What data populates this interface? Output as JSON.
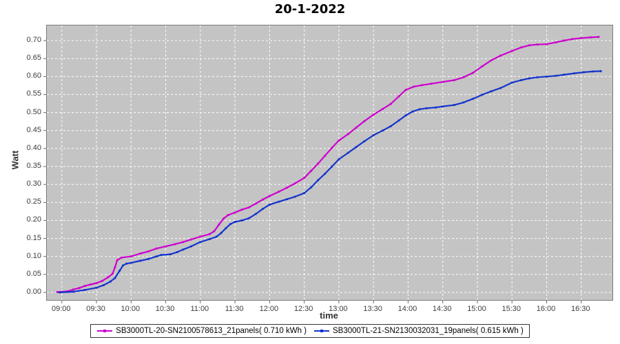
{
  "title": "20-1-2022",
  "axis": {
    "xlabel": "time",
    "ylabel": "Watt"
  },
  "colors": {
    "series1": "#cc00cc",
    "series2": "#1433cc",
    "plot_bg": "#c4c4c4",
    "grid": "#ffffff",
    "tick": "#6b6b6b"
  },
  "legend": {
    "entries": [
      {
        "label": "SB3000TL-20-SN2100578613_21panels( 0.710 kWh )",
        "color": "#cc00cc"
      },
      {
        "label": "SB3000TL-21-SN2130032031_19panels( 0.615 kWh )",
        "color": "#1433cc"
      }
    ]
  },
  "chart_data": {
    "type": "line",
    "title": "20-1-2022",
    "xlabel": "time",
    "ylabel": "Watt",
    "grid": true,
    "legend_position": "bottom",
    "x_ticks": [
      "09:00",
      "09:30",
      "10:00",
      "10:30",
      "11:00",
      "11:30",
      "12:00",
      "12:30",
      "13:00",
      "13:30",
      "14:00",
      "14:30",
      "15:00",
      "15:30",
      "16:00",
      "16:30"
    ],
    "y_ticks": [
      "0.00",
      "0.05",
      "0.10",
      "0.15",
      "0.20",
      "0.25",
      "0.30",
      "0.35",
      "0.40",
      "0.45",
      "0.50",
      "0.55",
      "0.60",
      "0.65",
      "0.70"
    ],
    "x_domain": [
      "08:47",
      "16:57"
    ],
    "ylim": [
      -0.021,
      0.742
    ],
    "series": [
      {
        "name": "SB3000TL-20-SN2100578613_21panels( 0.710 kWh )",
        "color": "#cc00cc",
        "final_kwh": 0.71,
        "points": [
          [
            "08:56",
            0.001
          ],
          [
            "09:05",
            0.003
          ],
          [
            "09:10",
            0.008
          ],
          [
            "09:15",
            0.012
          ],
          [
            "09:20",
            0.018
          ],
          [
            "09:25",
            0.022
          ],
          [
            "09:30",
            0.026
          ],
          [
            "09:35",
            0.032
          ],
          [
            "09:40",
            0.042
          ],
          [
            "09:44",
            0.052
          ],
          [
            "09:46",
            0.07
          ],
          [
            "09:48",
            0.09
          ],
          [
            "09:52",
            0.097
          ],
          [
            "10:00",
            0.1
          ],
          [
            "10:08",
            0.108
          ],
          [
            "10:15",
            0.114
          ],
          [
            "10:22",
            0.122
          ],
          [
            "10:30",
            0.128
          ],
          [
            "10:38",
            0.134
          ],
          [
            "10:45",
            0.14
          ],
          [
            "10:52",
            0.147
          ],
          [
            "11:00",
            0.155
          ],
          [
            "11:08",
            0.162
          ],
          [
            "11:12",
            0.17
          ],
          [
            "11:16",
            0.188
          ],
          [
            "11:20",
            0.205
          ],
          [
            "11:24",
            0.215
          ],
          [
            "11:30",
            0.222
          ],
          [
            "11:36",
            0.23
          ],
          [
            "11:42",
            0.236
          ],
          [
            "11:48",
            0.247
          ],
          [
            "11:54",
            0.258
          ],
          [
            "12:00",
            0.268
          ],
          [
            "12:08",
            0.28
          ],
          [
            "12:15",
            0.291
          ],
          [
            "12:22",
            0.303
          ],
          [
            "12:30",
            0.318
          ],
          [
            "12:36",
            0.338
          ],
          [
            "12:42",
            0.358
          ],
          [
            "12:48",
            0.38
          ],
          [
            "12:54",
            0.402
          ],
          [
            "13:00",
            0.422
          ],
          [
            "13:08",
            0.44
          ],
          [
            "13:15",
            0.458
          ],
          [
            "13:22",
            0.476
          ],
          [
            "13:30",
            0.494
          ],
          [
            "13:38",
            0.51
          ],
          [
            "13:45",
            0.524
          ],
          [
            "13:52",
            0.545
          ],
          [
            "13:58",
            0.563
          ],
          [
            "14:05",
            0.572
          ],
          [
            "14:12",
            0.576
          ],
          [
            "14:20",
            0.58
          ],
          [
            "14:30",
            0.585
          ],
          [
            "14:40",
            0.59
          ],
          [
            "14:48",
            0.598
          ],
          [
            "14:56",
            0.61
          ],
          [
            "15:04",
            0.628
          ],
          [
            "15:12",
            0.645
          ],
          [
            "15:20",
            0.658
          ],
          [
            "15:30",
            0.671
          ],
          [
            "15:38",
            0.681
          ],
          [
            "15:45",
            0.687
          ],
          [
            "15:52",
            0.689
          ],
          [
            "16:00",
            0.69
          ],
          [
            "16:08",
            0.695
          ],
          [
            "16:15",
            0.7
          ],
          [
            "16:22",
            0.704
          ],
          [
            "16:30",
            0.707
          ],
          [
            "16:38",
            0.709
          ],
          [
            "16:45",
            0.71
          ]
        ]
      },
      {
        "name": "SB3000TL-21-SN2130032031_19panels( 0.615 kWh )",
        "color": "#1433cc",
        "final_kwh": 0.615,
        "points": [
          [
            "08:58",
            0.0
          ],
          [
            "09:10",
            0.002
          ],
          [
            "09:20",
            0.007
          ],
          [
            "09:30",
            0.013
          ],
          [
            "09:36",
            0.02
          ],
          [
            "09:42",
            0.03
          ],
          [
            "09:46",
            0.04
          ],
          [
            "09:50",
            0.06
          ],
          [
            "09:53",
            0.075
          ],
          [
            "09:56",
            0.08
          ],
          [
            "10:00",
            0.082
          ],
          [
            "10:08",
            0.088
          ],
          [
            "10:15",
            0.093
          ],
          [
            "10:22",
            0.1
          ],
          [
            "10:26",
            0.104
          ],
          [
            "10:34",
            0.106
          ],
          [
            "10:40",
            0.112
          ],
          [
            "10:45",
            0.119
          ],
          [
            "10:52",
            0.128
          ],
          [
            "11:00",
            0.14
          ],
          [
            "11:08",
            0.148
          ],
          [
            "11:14",
            0.155
          ],
          [
            "11:18",
            0.165
          ],
          [
            "11:22",
            0.178
          ],
          [
            "11:26",
            0.19
          ],
          [
            "11:30",
            0.196
          ],
          [
            "11:36",
            0.2
          ],
          [
            "11:42",
            0.206
          ],
          [
            "11:48",
            0.218
          ],
          [
            "11:54",
            0.232
          ],
          [
            "12:00",
            0.244
          ],
          [
            "12:08",
            0.252
          ],
          [
            "12:15",
            0.259
          ],
          [
            "12:22",
            0.266
          ],
          [
            "12:30",
            0.276
          ],
          [
            "12:36",
            0.292
          ],
          [
            "12:42",
            0.312
          ],
          [
            "12:48",
            0.33
          ],
          [
            "12:54",
            0.35
          ],
          [
            "13:00",
            0.37
          ],
          [
            "13:08",
            0.388
          ],
          [
            "13:15",
            0.404
          ],
          [
            "13:22",
            0.42
          ],
          [
            "13:30",
            0.437
          ],
          [
            "13:38",
            0.45
          ],
          [
            "13:45",
            0.462
          ],
          [
            "13:52",
            0.478
          ],
          [
            "13:58",
            0.492
          ],
          [
            "14:04",
            0.503
          ],
          [
            "14:10",
            0.509
          ],
          [
            "14:16",
            0.512
          ],
          [
            "14:24",
            0.514
          ],
          [
            "14:30",
            0.517
          ],
          [
            "14:40",
            0.521
          ],
          [
            "14:48",
            0.528
          ],
          [
            "14:56",
            0.538
          ],
          [
            "15:04",
            0.549
          ],
          [
            "15:12",
            0.559
          ],
          [
            "15:20",
            0.568
          ],
          [
            "15:30",
            0.583
          ],
          [
            "15:38",
            0.59
          ],
          [
            "15:45",
            0.595
          ],
          [
            "15:52",
            0.598
          ],
          [
            "16:00",
            0.6
          ],
          [
            "16:08",
            0.602
          ],
          [
            "16:15",
            0.605
          ],
          [
            "16:24",
            0.609
          ],
          [
            "16:32",
            0.612
          ],
          [
            "16:40",
            0.614
          ],
          [
            "16:47",
            0.615
          ]
        ]
      }
    ]
  }
}
